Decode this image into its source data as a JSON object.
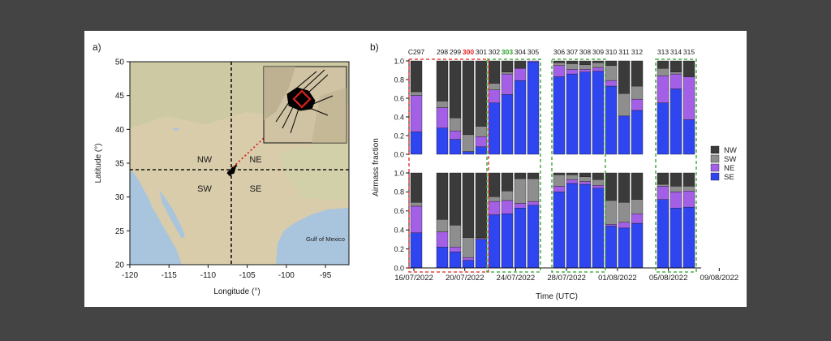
{
  "figure": {
    "panel_a_label": "a)",
    "panel_b_label": "b)"
  },
  "map": {
    "xlabel": "Longitude (°)",
    "ylabel": "Latitude (°)",
    "x_ticks": [
      -120,
      -115,
      -110,
      -105,
      -100,
      -95
    ],
    "y_ticks": [
      20,
      25,
      30,
      35,
      40,
      45,
      50
    ],
    "xlim": [
      -120,
      -92
    ],
    "ylim": [
      20,
      50
    ],
    "divider_longitude": -107,
    "divider_latitude": 34,
    "quadrant_labels": {
      "nw": "NW",
      "ne": "NE",
      "sw": "SW",
      "se": "SE"
    },
    "gulf_label": "Gulf of Mexico",
    "colors": {
      "land": "#d9ccaa",
      "water": "#a9c5de",
      "diamond": "#e0201b",
      "arrow": "#d62020"
    }
  },
  "chart_data": {
    "type": "bar",
    "stacked": true,
    "ylabel": "Airmass fraction",
    "xlabel": "Time (UTC)",
    "yticks": [
      "0.0",
      "0.2",
      "0.4",
      "0.6",
      "0.8",
      "1.0"
    ],
    "ylim": [
      0,
      1
    ],
    "x_date_labels": [
      "16/07/2022",
      "20/07/2022",
      "24/07/2022",
      "28/07/2022",
      "01/08/2022",
      "05/08/2022",
      "09/08/2022"
    ],
    "legend": [
      {
        "name": "NW",
        "color": "#3b3b3b"
      },
      {
        "name": "SW",
        "color": "#8e8e8e"
      },
      {
        "name": "NE",
        "color": "#a35fe6"
      },
      {
        "name": "SE",
        "color": "#2e45f0"
      }
    ],
    "flight_labels": [
      {
        "text": "C297",
        "color": "#1a1a1a"
      },
      {
        "text": "298",
        "color": "#1a1a1a"
      },
      {
        "text": "299",
        "color": "#1a1a1a"
      },
      {
        "text": "300",
        "color": "#e01b1b"
      },
      {
        "text": "301",
        "color": "#1a1a1a"
      },
      {
        "text": "302",
        "color": "#1a1a1a"
      },
      {
        "text": "303",
        "color": "#2aa02a"
      },
      {
        "text": "304",
        "color": "#1a1a1a"
      },
      {
        "text": "305",
        "color": "#1a1a1a"
      },
      {
        "text": "306",
        "color": "#1a1a1a"
      },
      {
        "text": "307",
        "color": "#1a1a1a"
      },
      {
        "text": "308",
        "color": "#1a1a1a"
      },
      {
        "text": "309",
        "color": "#1a1a1a"
      },
      {
        "text": "310",
        "color": "#1a1a1a"
      },
      {
        "text": "311",
        "color": "#1a1a1a"
      },
      {
        "text": "312",
        "color": "#1a1a1a"
      },
      {
        "text": "313",
        "color": "#1a1a1a"
      },
      {
        "text": "314",
        "color": "#1a1a1a"
      },
      {
        "text": "315",
        "color": "#1a1a1a"
      }
    ],
    "slots": [
      0,
      2,
      3,
      4,
      5,
      6,
      7,
      8,
      9,
      11,
      12,
      13,
      14,
      15,
      16,
      17,
      19,
      20,
      21
    ],
    "top": [
      {
        "SE": 0.24,
        "NE": 0.39,
        "SW": 0.04,
        "NW": 0.33
      },
      {
        "SE": 0.28,
        "NE": 0.22,
        "SW": 0.07,
        "NW": 0.43
      },
      {
        "SE": 0.16,
        "NE": 0.09,
        "SW": 0.14,
        "NW": 0.61
      },
      {
        "SE": 0.03,
        "NE": 0.0,
        "SW": 0.18,
        "NW": 0.79
      },
      {
        "SE": 0.08,
        "NE": 0.11,
        "SW": 0.11,
        "NW": 0.7
      },
      {
        "SE": 0.55,
        "NE": 0.14,
        "SW": 0.07,
        "NW": 0.24
      },
      {
        "SE": 0.64,
        "NE": 0.22,
        "SW": 0.02,
        "NW": 0.12
      },
      {
        "SE": 0.79,
        "NE": 0.13,
        "SW": 0.0,
        "NW": 0.08
      },
      {
        "SE": 0.99,
        "NE": 0.01,
        "SW": 0.0,
        "NW": 0.0
      },
      {
        "SE": 0.83,
        "NE": 0.12,
        "SW": 0.03,
        "NW": 0.02
      },
      {
        "SE": 0.86,
        "NE": 0.05,
        "SW": 0.06,
        "NW": 0.03
      },
      {
        "SE": 0.88,
        "NE": 0.03,
        "SW": 0.05,
        "NW": 0.04
      },
      {
        "SE": 0.89,
        "NE": 0.04,
        "SW": 0.05,
        "NW": 0.02
      },
      {
        "SE": 0.73,
        "NE": 0.06,
        "SW": 0.16,
        "NW": 0.05
      },
      {
        "SE": 0.41,
        "NE": 0.0,
        "SW": 0.24,
        "NW": 0.35
      },
      {
        "SE": 0.47,
        "NE": 0.12,
        "SW": 0.14,
        "NW": 0.27
      },
      {
        "SE": 0.55,
        "NE": 0.29,
        "SW": 0.08,
        "NW": 0.08
      },
      {
        "SE": 0.7,
        "NE": 0.16,
        "SW": 0.02,
        "NW": 0.12
      },
      {
        "SE": 0.37,
        "NE": 0.46,
        "SW": 0.0,
        "NW": 0.17
      }
    ],
    "bottom": [
      {
        "SE": 0.37,
        "NE": 0.28,
        "SW": 0.04,
        "NW": 0.31
      },
      {
        "SE": 0.22,
        "NE": 0.16,
        "SW": 0.13,
        "NW": 0.49
      },
      {
        "SE": 0.17,
        "NE": 0.05,
        "SW": 0.23,
        "NW": 0.55
      },
      {
        "SE": 0.08,
        "NE": 0.03,
        "SW": 0.21,
        "NW": 0.68
      },
      {
        "SE": 0.3,
        "NE": 0.01,
        "SW": 0.01,
        "NW": 0.68
      },
      {
        "SE": 0.56,
        "NE": 0.14,
        "SW": 0.05,
        "NW": 0.25
      },
      {
        "SE": 0.57,
        "NE": 0.14,
        "SW": 0.1,
        "NW": 0.19
      },
      {
        "SE": 0.63,
        "NE": 0.05,
        "SW": 0.26,
        "NW": 0.06
      },
      {
        "SE": 0.66,
        "NE": 0.04,
        "SW": 0.24,
        "NW": 0.06
      },
      {
        "SE": 0.8,
        "NE": 0.06,
        "SW": 0.12,
        "NW": 0.02
      },
      {
        "SE": 0.89,
        "NE": 0.04,
        "SW": 0.05,
        "NW": 0.02
      },
      {
        "SE": 0.88,
        "NE": 0.03,
        "SW": 0.05,
        "NW": 0.04
      },
      {
        "SE": 0.84,
        "NE": 0.03,
        "SW": 0.06,
        "NW": 0.07
      },
      {
        "SE": 0.44,
        "NE": 0.02,
        "SW": 0.25,
        "NW": 0.29
      },
      {
        "SE": 0.42,
        "NE": 0.06,
        "SW": 0.21,
        "NW": 0.31
      },
      {
        "SE": 0.47,
        "NE": 0.1,
        "SW": 0.15,
        "NW": 0.28
      },
      {
        "SE": 0.72,
        "NE": 0.14,
        "SW": 0.02,
        "NW": 0.12
      },
      {
        "SE": 0.63,
        "NE": 0.17,
        "SW": 0.06,
        "NW": 0.14
      },
      {
        "SE": 0.64,
        "NE": 0.17,
        "SW": 0.05,
        "NW": 0.14
      }
    ],
    "highlight_boxes": [
      {
        "name": "red-highlight-box",
        "from": 0,
        "to": 4,
        "color": "#e0201b"
      },
      {
        "name": "green-highlight-box-1",
        "from": 5,
        "to": 8,
        "color": "#2aa02a"
      },
      {
        "name": "green-highlight-box-2",
        "from": 9,
        "to": 12,
        "color": "#2aa02a"
      },
      {
        "name": "green-highlight-box-3",
        "from": 16,
        "to": 18,
        "color": "#2aa02a"
      }
    ]
  }
}
